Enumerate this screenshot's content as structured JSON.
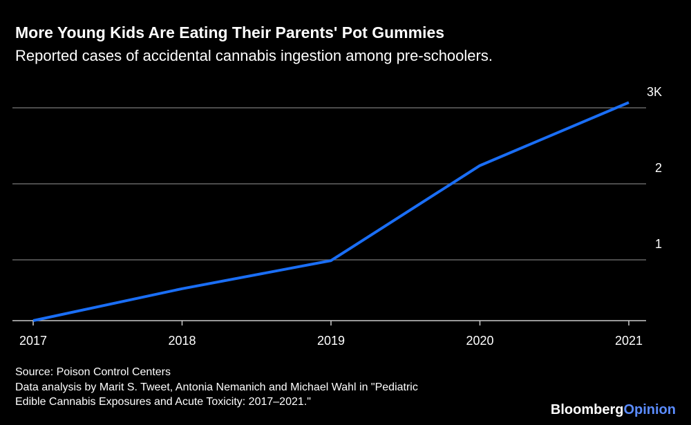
{
  "chart_data": {
    "type": "line",
    "title": "More Young Kids Are Eating Their Parents' Pot Gummies",
    "subtitle": "Reported cases of accidental cannabis ingestion among pre-schoolers.",
    "x": [
      2017,
      2018,
      2019,
      2020,
      2021
    ],
    "series": [
      {
        "name": "Reported cases",
        "color": "#1a6ef5",
        "values": [
          0.2,
          0.62,
          0.99,
          2.24,
          3.07
        ]
      }
    ],
    "xlim": [
      2017,
      2021
    ],
    "xticks": [
      2017,
      2018,
      2019,
      2020,
      2021
    ],
    "ylim": [
      0.2,
      3.3
    ],
    "yticks": [
      1,
      2,
      {
        "value": 3,
        "label": "3K"
      }
    ],
    "grid": true,
    "source": "Source: Poison Control Centers",
    "note": [
      "Data analysis by Marit S. Tweet, Antonia Nemanich and Michael Wahl in \"Pediatric",
      "Edible Cannabis Exposures and Acute Toxicity: 2017–2021.\""
    ],
    "logo": [
      "Bloomberg",
      "Opinion"
    ]
  }
}
